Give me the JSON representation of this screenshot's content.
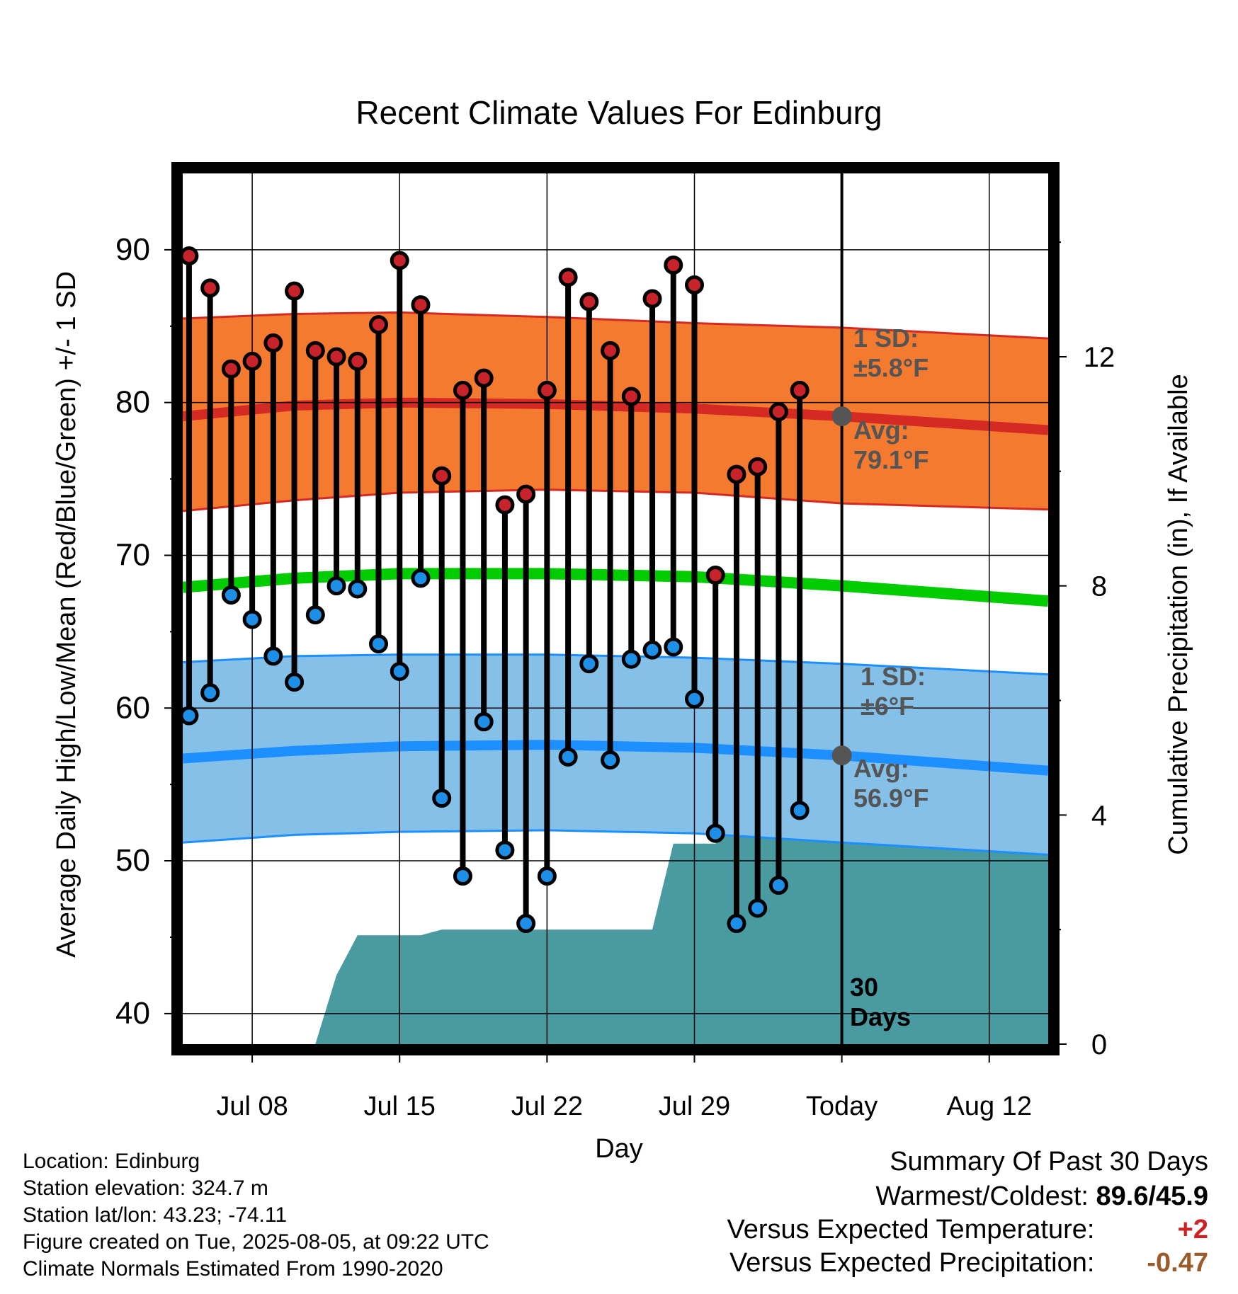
{
  "chart_data": {
    "type": "line",
    "title": "Recent Climate Values For Edinburg",
    "xlabel": "Day",
    "ylabel_left": "Average Daily High/Low/Mean (Red/Blue/Green) +/- 1 SD",
    "ylabel_right": "Cumulative Precipitation (in), If Available",
    "ylim_left": [
      38,
      95
    ],
    "ylim_right": [
      0,
      15.2
    ],
    "grid": true,
    "x_tick_labels": [
      {
        "day": 8,
        "label": "Jul 08"
      },
      {
        "day": 15,
        "label": "Jul 15"
      },
      {
        "day": 22,
        "label": "Jul 22"
      },
      {
        "day": 29,
        "label": "Jul 29"
      },
      {
        "day": 36,
        "label": "Today"
      },
      {
        "day": 43,
        "label": "Aug 12"
      }
    ],
    "y_ticks_left": [
      40,
      50,
      60,
      70,
      80,
      90
    ],
    "y_ticks_right": [
      0,
      4,
      8,
      12
    ],
    "x_range": [
      4.7,
      45.8
    ],
    "days": [
      5,
      6,
      7,
      8,
      9,
      10,
      11,
      12,
      13,
      14,
      15,
      16,
      17,
      18,
      19,
      20,
      21,
      22,
      23,
      24,
      25,
      26,
      27,
      28,
      29,
      30,
      31,
      32,
      33,
      34,
      35
    ],
    "highs": [
      89.6,
      87.5,
      82.2,
      82.7,
      83.9,
      87.3,
      83.4,
      83.0,
      82.7,
      85.1,
      89.3,
      86.4,
      75.2,
      80.8,
      81.6,
      73.3,
      74.0,
      80.8,
      88.2,
      86.6,
      83.4,
      80.4,
      86.8,
      89.0,
      87.7,
      68.7,
      75.3,
      75.8,
      79.4,
      80.8,
      null
    ],
    "lows": [
      59.5,
      61.0,
      67.4,
      65.8,
      63.4,
      61.7,
      66.1,
      68.0,
      67.8,
      64.2,
      62.4,
      68.5,
      54.1,
      49.0,
      59.1,
      50.7,
      45.9,
      49.0,
      56.8,
      62.9,
      56.6,
      63.2,
      63.8,
      64.0,
      60.6,
      51.8,
      45.9,
      46.9,
      48.4,
      53.3,
      null
    ],
    "normal_high": {
      "days": [
        4.7,
        10,
        15,
        22,
        29,
        36,
        45.8
      ],
      "avg": [
        79.1,
        79.8,
        80.0,
        79.9,
        79.6,
        79.1,
        78.2
      ],
      "upper": [
        85.5,
        85.8,
        85.9,
        85.6,
        85.2,
        84.9,
        84.2
      ],
      "lower": [
        72.9,
        73.6,
        74.1,
        74.3,
        74.1,
        73.4,
        73.0
      ]
    },
    "normal_low": {
      "days": [
        4.7,
        10,
        15,
        22,
        29,
        36,
        45.8
      ],
      "avg": [
        56.7,
        57.2,
        57.5,
        57.6,
        57.4,
        56.9,
        55.9
      ],
      "upper": [
        63.0,
        63.4,
        63.5,
        63.5,
        63.3,
        62.9,
        62.2
      ],
      "lower": [
        51.2,
        51.7,
        51.9,
        52.0,
        51.8,
        51.2,
        50.4
      ]
    },
    "normal_mean": {
      "days": [
        4.7,
        10,
        15,
        22,
        29,
        36,
        45.8
      ],
      "values": [
        67.9,
        68.5,
        68.8,
        68.8,
        68.6,
        68.0,
        67.0
      ]
    },
    "precip": {
      "days": [
        4.7,
        11,
        12,
        13,
        14,
        16,
        17,
        27,
        28,
        30,
        31,
        32,
        45.8
      ],
      "values": [
        0,
        0,
        1.2,
        1.9,
        1.9,
        1.9,
        2.0,
        2.0,
        3.5,
        3.5,
        3.9,
        3.9,
        3.9
      ]
    },
    "today_day": 36,
    "today_high_avg_marker": 79.1,
    "today_low_avg_marker": 56.9,
    "annotations": {
      "high_sd": [
        "1 SD:",
        "±5.8°F"
      ],
      "high_avg": [
        "Avg:",
        "79.1°F"
      ],
      "low_sd": [
        "1 SD:",
        "±6°F"
      ],
      "low_avg": [
        "Avg:",
        "56.9°F"
      ],
      "days": [
        "30",
        "Days"
      ]
    },
    "colors": {
      "high_band": "#f47a30",
      "high_line": "#d42a23",
      "low_band": "#84c0e8",
      "low_line": "#1e8fff",
      "mean_line": "#00cc00",
      "precip": "#4a9aa2",
      "high_point": "#c8232a",
      "low_point": "#1e8fe6",
      "annotation": "#555555"
    }
  },
  "info": {
    "location": "Location: Edinburg",
    "elevation": "Station elevation: 324.7 m",
    "latlon": "Station lat/lon: 43.23; -74.11",
    "created": "Figure created on Tue, 2025-08-05, at 09:22 UTC",
    "normals": "Climate Normals Estimated From 1990-2020"
  },
  "summary": {
    "title": "Summary Of Past 30 Days",
    "warm_label": "Warmest/Coldest:",
    "warm_value": "89.6/45.9",
    "temp_label": "Versus Expected Temperature:",
    "temp_value": "+2",
    "temp_color": "#cc2222",
    "precip_label": "Versus Expected Precipitation:",
    "precip_value": "-0.47",
    "precip_color": "#9a5a2a"
  }
}
